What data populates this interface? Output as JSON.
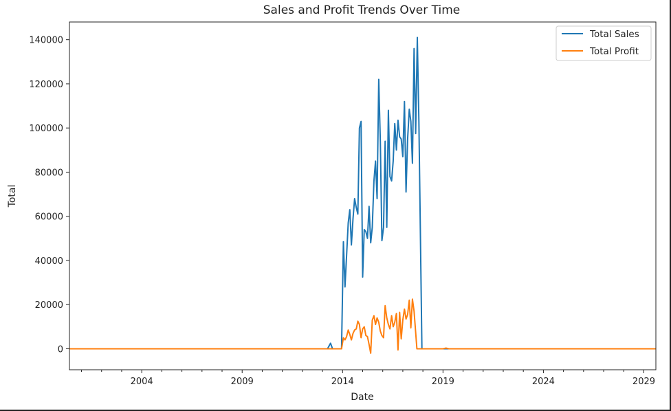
{
  "chart_data": {
    "type": "line",
    "title": "Sales and Profit Trends Over Time",
    "xlabel": "Date",
    "ylabel": "Total",
    "xlim": [
      2000.4,
      2029.6
    ],
    "ylim": [
      -9500,
      148000
    ],
    "x_ticks": [
      2004,
      2009,
      2014,
      2019,
      2024,
      2029
    ],
    "y_ticks": [
      0,
      20000,
      40000,
      60000,
      80000,
      100000,
      120000,
      140000
    ],
    "grid": false,
    "legend_position": "top-right",
    "series": [
      {
        "name": "Total Sales",
        "color": "#1f77b4",
        "points": [
          [
            2000.4,
            0
          ],
          [
            2013.25,
            0
          ],
          [
            2013.4,
            2500
          ],
          [
            2013.5,
            0
          ],
          [
            2013.95,
            0
          ],
          [
            2014.04,
            48500
          ],
          [
            2014.12,
            28000
          ],
          [
            2014.2,
            42000
          ],
          [
            2014.28,
            57000
          ],
          [
            2014.36,
            63000
          ],
          [
            2014.44,
            47000
          ],
          [
            2014.52,
            59000
          ],
          [
            2014.6,
            68000
          ],
          [
            2014.68,
            64000
          ],
          [
            2014.76,
            61000
          ],
          [
            2014.84,
            100000
          ],
          [
            2014.92,
            103000
          ],
          [
            2015.0,
            32500
          ],
          [
            2015.08,
            54000
          ],
          [
            2015.16,
            53000
          ],
          [
            2015.24,
            50000
          ],
          [
            2015.32,
            64500
          ],
          [
            2015.4,
            48000
          ],
          [
            2015.48,
            55000
          ],
          [
            2015.56,
            76000
          ],
          [
            2015.64,
            85000
          ],
          [
            2015.72,
            68000
          ],
          [
            2015.8,
            122000
          ],
          [
            2015.88,
            94000
          ],
          [
            2015.96,
            49000
          ],
          [
            2016.04,
            55000
          ],
          [
            2016.12,
            94000
          ],
          [
            2016.2,
            55000
          ],
          [
            2016.28,
            108000
          ],
          [
            2016.36,
            78000
          ],
          [
            2016.44,
            76000
          ],
          [
            2016.52,
            85000
          ],
          [
            2016.6,
            102000
          ],
          [
            2016.68,
            90000
          ],
          [
            2016.76,
            103500
          ],
          [
            2016.84,
            96000
          ],
          [
            2016.92,
            95000
          ],
          [
            2017.0,
            87000
          ],
          [
            2017.08,
            112000
          ],
          [
            2017.16,
            71000
          ],
          [
            2017.24,
            95000
          ],
          [
            2017.32,
            108500
          ],
          [
            2017.4,
            103000
          ],
          [
            2017.48,
            84000
          ],
          [
            2017.56,
            136000
          ],
          [
            2017.64,
            97500
          ],
          [
            2017.72,
            141000
          ],
          [
            2017.8,
            103000
          ],
          [
            2017.95,
            0
          ],
          [
            2029.6,
            0
          ]
        ]
      },
      {
        "name": "Total Profit",
        "color": "#ff7f0e",
        "points": [
          [
            2000.4,
            0
          ],
          [
            2013.95,
            0
          ],
          [
            2014.04,
            5000
          ],
          [
            2014.12,
            4000
          ],
          [
            2014.2,
            5500
          ],
          [
            2014.28,
            8500
          ],
          [
            2014.36,
            6500
          ],
          [
            2014.44,
            4000
          ],
          [
            2014.52,
            7000
          ],
          [
            2014.6,
            8500
          ],
          [
            2014.68,
            9000
          ],
          [
            2014.76,
            12500
          ],
          [
            2014.84,
            11000
          ],
          [
            2014.92,
            5000
          ],
          [
            2015.0,
            9000
          ],
          [
            2015.08,
            10000
          ],
          [
            2015.16,
            6000
          ],
          [
            2015.24,
            5500
          ],
          [
            2015.32,
            2000
          ],
          [
            2015.4,
            -2000
          ],
          [
            2015.48,
            13000
          ],
          [
            2015.56,
            15000
          ],
          [
            2015.64,
            11000
          ],
          [
            2015.72,
            14000
          ],
          [
            2015.8,
            12000
          ],
          [
            2015.88,
            8000
          ],
          [
            2015.96,
            6000
          ],
          [
            2016.04,
            5000
          ],
          [
            2016.12,
            19500
          ],
          [
            2016.2,
            14000
          ],
          [
            2016.28,
            11000
          ],
          [
            2016.36,
            9000
          ],
          [
            2016.44,
            15000
          ],
          [
            2016.52,
            10000
          ],
          [
            2016.6,
            12000
          ],
          [
            2016.68,
            16000
          ],
          [
            2016.76,
            -500
          ],
          [
            2016.84,
            16500
          ],
          [
            2016.92,
            4500
          ],
          [
            2017.0,
            13000
          ],
          [
            2017.08,
            18000
          ],
          [
            2017.16,
            13500
          ],
          [
            2017.24,
            15500
          ],
          [
            2017.32,
            22000
          ],
          [
            2017.4,
            9500
          ],
          [
            2017.48,
            22500
          ],
          [
            2017.56,
            17000
          ],
          [
            2017.7,
            0
          ],
          [
            2019.0,
            0
          ],
          [
            2019.15,
            300
          ],
          [
            2019.3,
            0
          ],
          [
            2029.6,
            0
          ]
        ]
      }
    ]
  }
}
